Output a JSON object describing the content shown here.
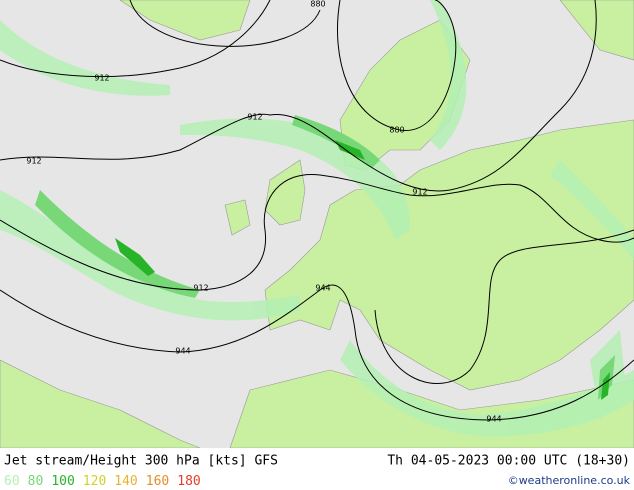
{
  "map": {
    "contour_labels": [
      "880",
      "912",
      "912",
      "880",
      "912",
      "912",
      "912",
      "944",
      "944",
      "944"
    ]
  },
  "footer": {
    "title": "Jet stream/Height 300 hPa [kts] GFS",
    "datetime": "Th 04-05-2023 00:00 UTC (18+30)",
    "legend": [
      {
        "label": "60",
        "color": "#b4f0b4"
      },
      {
        "label": "80",
        "color": "#78d878"
      },
      {
        "label": "100",
        "color": "#28b428"
      },
      {
        "label": "120",
        "color": "#d2d228"
      },
      {
        "label": "140",
        "color": "#e6b432"
      },
      {
        "label": "160",
        "color": "#e68c28"
      },
      {
        "label": "180",
        "color": "#e63c28"
      }
    ],
    "credit": "©weatheronline.co.uk"
  }
}
